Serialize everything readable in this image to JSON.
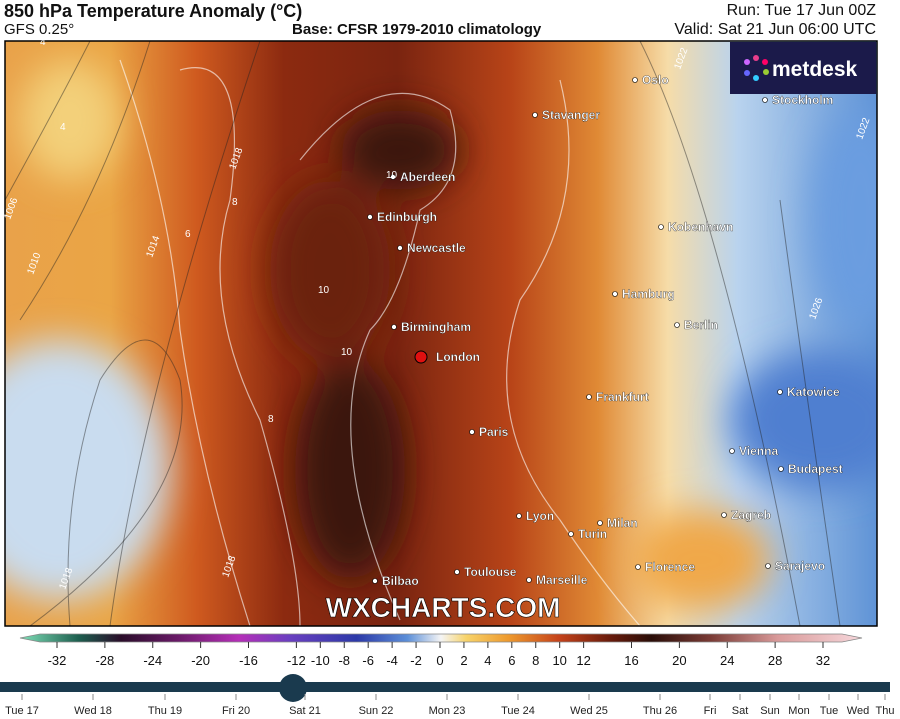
{
  "header": {
    "title": "850 hPa Temperature Anomaly (°C)",
    "model": "GFS 0.25°",
    "base": "Base: CFSR 1979-2010 climatology",
    "run": "Run: Tue 17 Jun 00Z",
    "valid": "Valid: Sat 21 Jun 06:00 UTC"
  },
  "logo": "metdesk",
  "watermark": "WXCHARTS.COM",
  "cities": [
    "Oslo",
    "Stavanger",
    "Stockholm",
    "Aberdeen",
    "Edinburgh",
    "Newcastle",
    "Kobenhavn",
    "Hamburg",
    "Berlin",
    "Birmingham",
    "London",
    "Frankfurt",
    "Katowice",
    "Paris",
    "Vienna",
    "Budapest",
    "Zagreb",
    "Lyon",
    "Milan",
    "Turin",
    "Florence",
    "Sarajevo",
    "Bilbao",
    "Toulouse",
    "Marseille"
  ],
  "contour_labels": [
    "1006",
    "1010",
    "1014",
    "1018",
    "1022",
    "1026",
    "1022",
    "1018",
    "1018",
    "10",
    "10",
    "10",
    "8",
    "8",
    "6",
    "4",
    "4"
  ],
  "colorbar": {
    "ticks": [
      -32,
      -28,
      -24,
      -20,
      -16,
      -12,
      -10,
      -8,
      -6,
      -4,
      -2,
      0,
      2,
      4,
      6,
      8,
      10,
      12,
      16,
      20,
      24,
      28,
      32
    ]
  },
  "timeline": {
    "labels": [
      "Tue 17",
      "Wed 18",
      "Thu 19",
      "Fri 20",
      "Sat 21",
      "Sun 22",
      "Mon 23",
      "Tue 24",
      "Wed 25",
      "Thu 26",
      "Fri",
      "Sat",
      "Sun",
      "Mon",
      "Tue",
      "Wed",
      "Thu"
    ]
  }
}
